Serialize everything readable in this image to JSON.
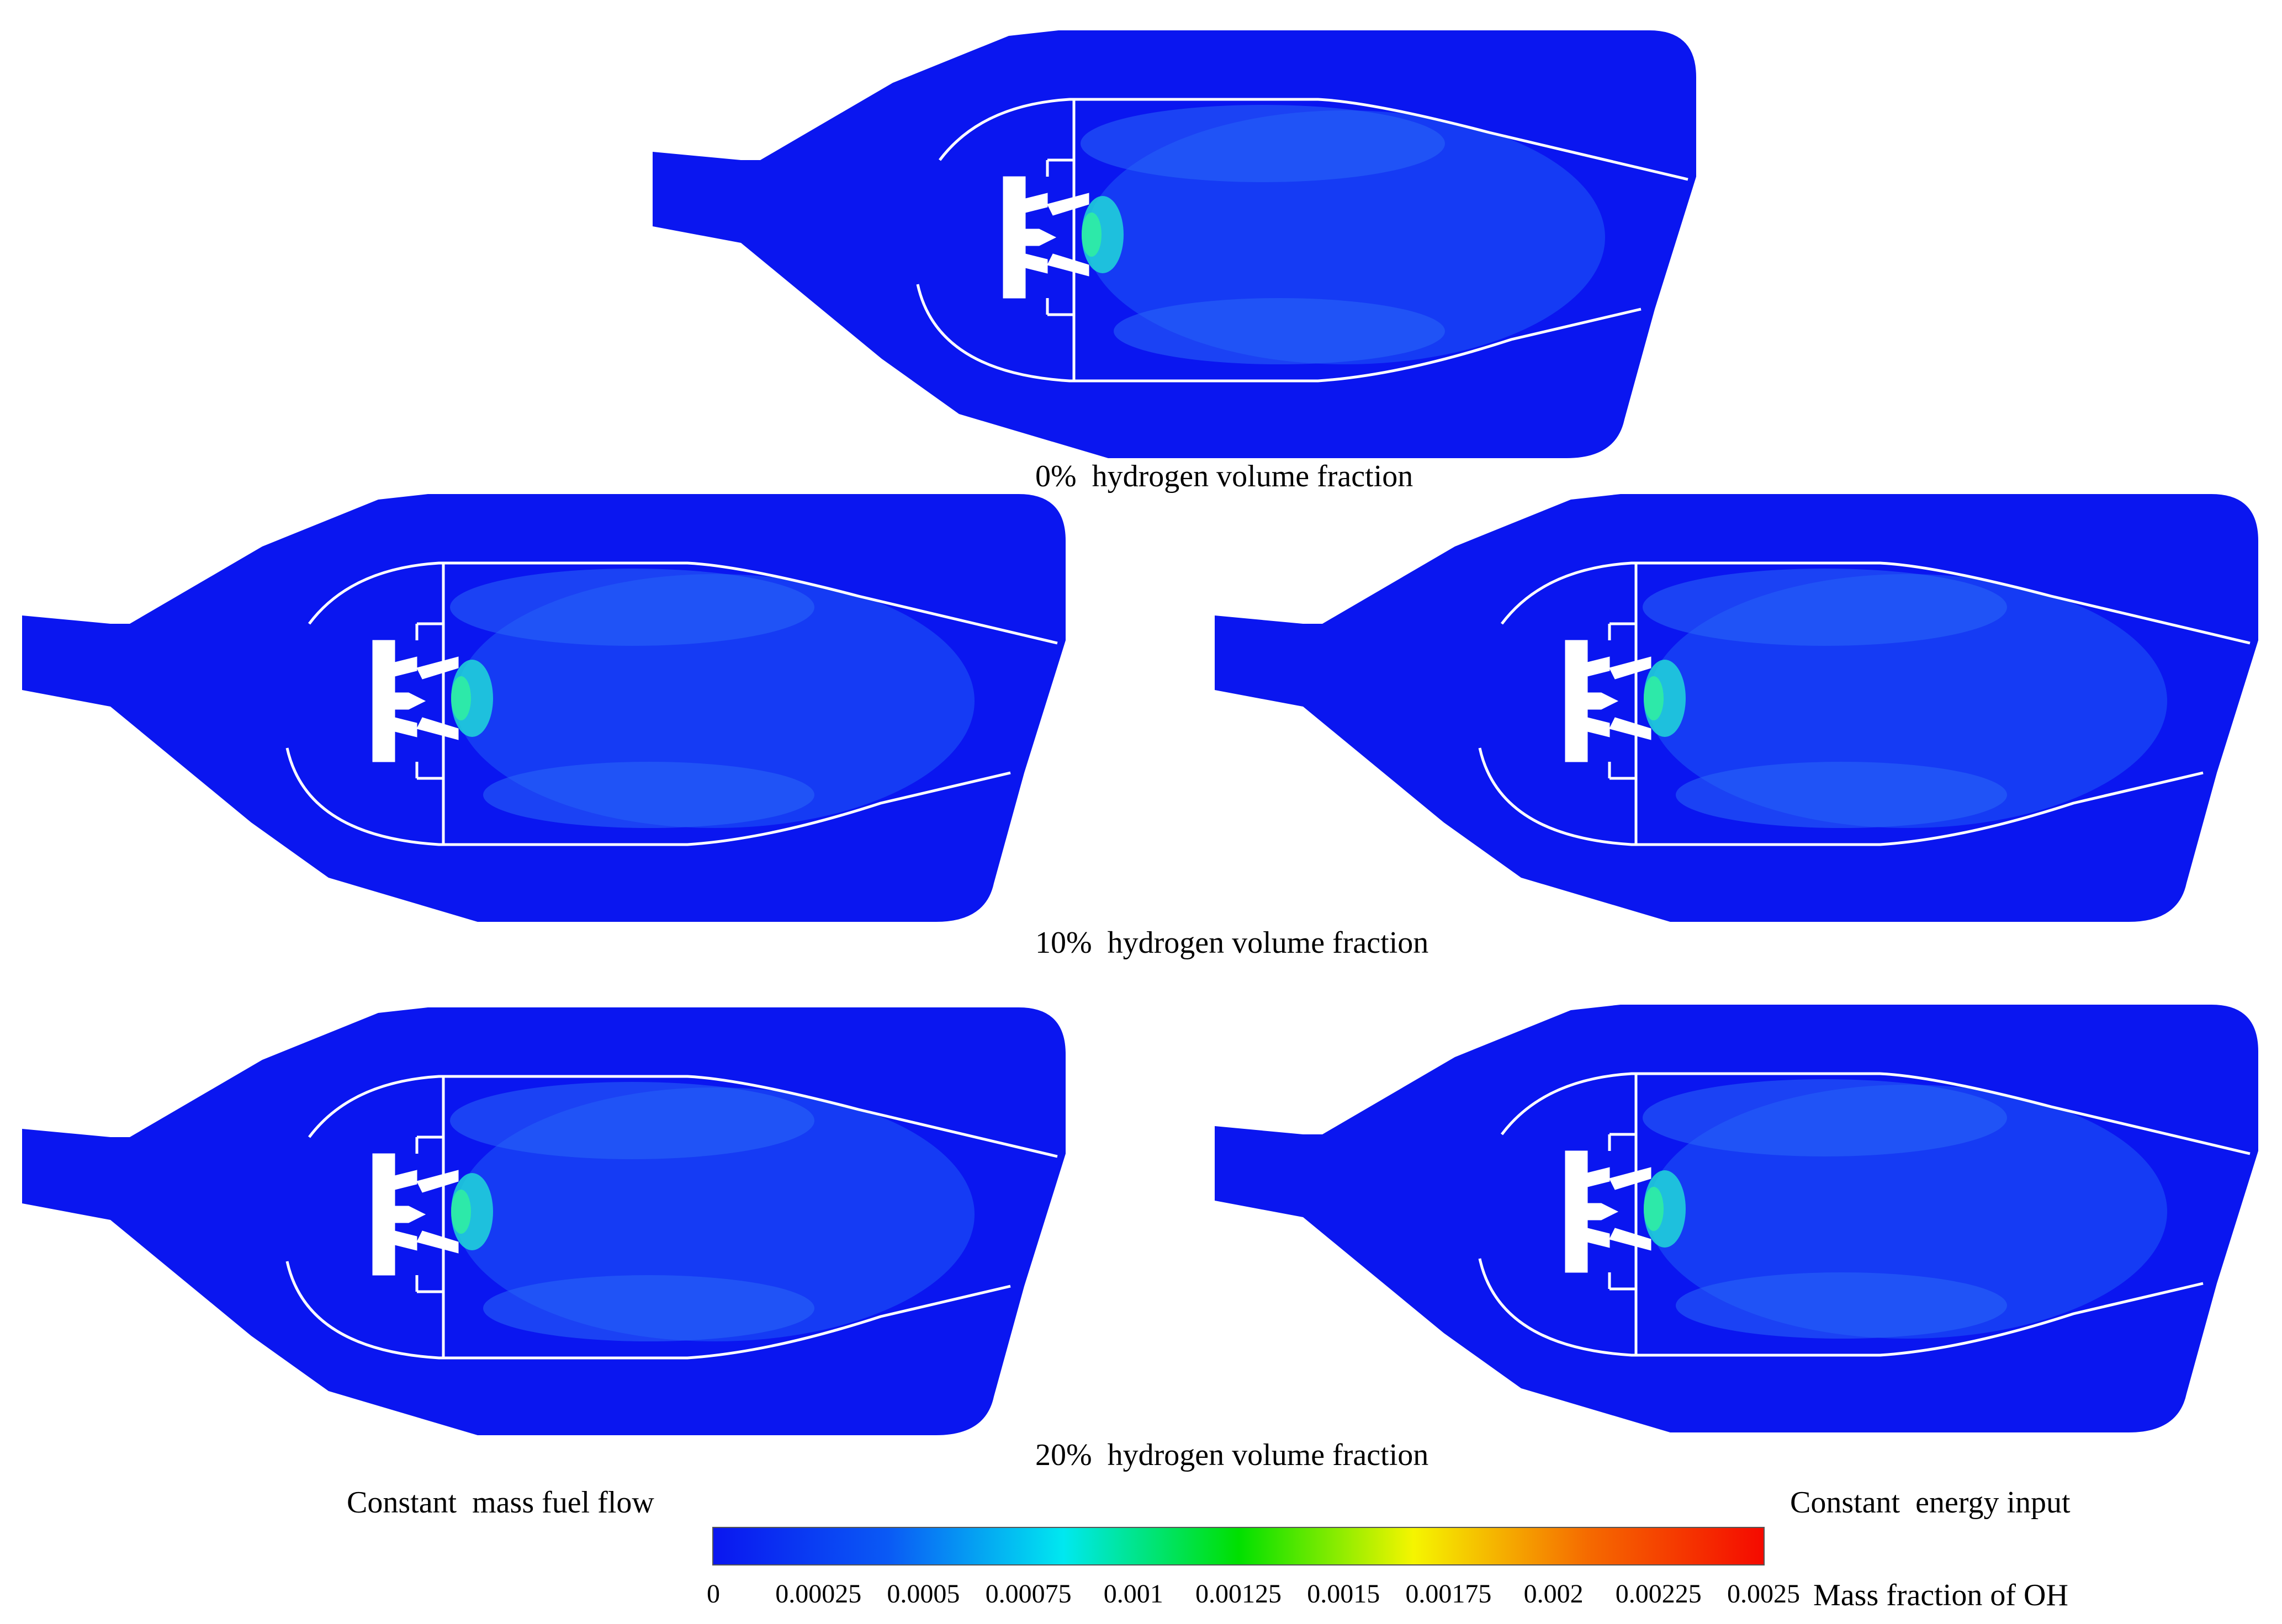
{
  "panels": [
    {
      "id": "top",
      "caption": "0%  hydrogen volume fraction"
    },
    {
      "id": "mid-left",
      "caption": ""
    },
    {
      "id": "mid-right",
      "caption": ""
    },
    {
      "id": "bot-left",
      "caption": ""
    },
    {
      "id": "bot-right",
      "caption": ""
    }
  ],
  "row_captions": {
    "row2": "10%  hydrogen volume fraction",
    "row3": "20%  hydrogen volume fraction"
  },
  "column_captions": {
    "left": "Constant  mass fuel flow",
    "right": "Constant  energy input"
  },
  "colorbar": {
    "title": "Mass fraction of OH",
    "ticks": [
      "0",
      "0.00025",
      "0.0005",
      "0.00075",
      "0.001",
      "0.00125",
      "0.0015",
      "0.00175",
      "0.002",
      "0.00225",
      "0.0025"
    ],
    "range": [
      0,
      0.0025
    ],
    "colors": [
      "#0a16f0",
      "#0a5af5",
      "#00e8f0",
      "#00e000",
      "#f5f500",
      "#f56a00",
      "#f50a00"
    ]
  },
  "fill_color": "#0a16f0"
}
